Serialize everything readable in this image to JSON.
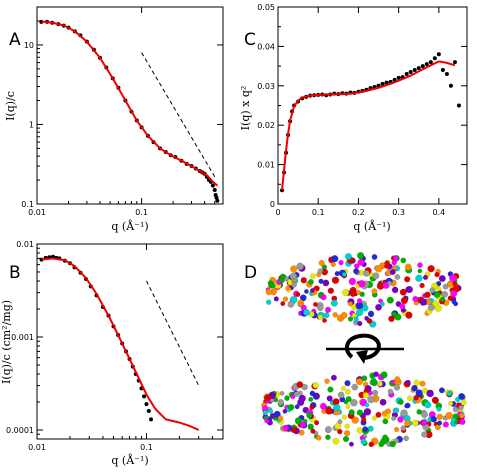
{
  "figure": {
    "panels": {
      "A": {
        "letter": "A"
      },
      "B": {
        "letter": "B"
      },
      "C": {
        "letter": "C"
      },
      "D": {
        "letter": "D"
      }
    }
  },
  "chart_data": [
    {
      "panel": "A",
      "type": "scatter",
      "xlabel": "q (Å⁻¹)",
      "ylabel": "I(q)/c",
      "x_scale": "log",
      "y_scale": "log",
      "xlim": [
        0.01,
        0.6
      ],
      "ylim": [
        0.1,
        30
      ],
      "x_ticks": [
        0.01,
        0.1
      ],
      "x_tick_labels": [
        "0.01",
        "0.1"
      ],
      "y_ticks": [
        0.1,
        1,
        10
      ],
      "y_tick_labels": [
        "0.1",
        "1",
        "10"
      ],
      "grid": false,
      "series": [
        {
          "kind": "points",
          "color": "#000000",
          "x": [
            0.011,
            0.0125,
            0.014,
            0.016,
            0.018,
            0.02,
            0.023,
            0.026,
            0.03,
            0.035,
            0.04,
            0.046,
            0.053,
            0.06,
            0.07,
            0.08,
            0.09,
            0.1,
            0.115,
            0.13,
            0.15,
            0.17,
            0.19,
            0.21,
            0.24,
            0.27,
            0.3,
            0.33,
            0.36,
            0.38,
            0.4,
            0.42,
            0.44,
            0.46,
            0.48,
            0.5,
            0.51,
            0.52,
            0.53
          ],
          "y": [
            19.5,
            19.5,
            19.0,
            18.3,
            17.5,
            16.5,
            14.8,
            13.2,
            11.0,
            8.7,
            6.9,
            5.2,
            3.8,
            2.9,
            2.0,
            1.45,
            1.12,
            0.92,
            0.72,
            0.6,
            0.5,
            0.45,
            0.41,
            0.39,
            0.35,
            0.32,
            0.3,
            0.28,
            0.26,
            0.25,
            0.24,
            0.22,
            0.2,
            0.19,
            0.17,
            0.15,
            0.13,
            0.12,
            0.11
          ]
        },
        {
          "kind": "fit",
          "color": "#ee0000",
          "x": [
            0.011,
            0.014,
            0.018,
            0.023,
            0.03,
            0.04,
            0.053,
            0.07,
            0.09,
            0.115,
            0.15,
            0.19,
            0.24,
            0.3,
            0.36,
            0.42,
            0.48,
            0.53
          ],
          "y": [
            19.7,
            19.1,
            17.6,
            14.9,
            11.0,
            6.9,
            3.8,
            2.0,
            1.12,
            0.72,
            0.5,
            0.41,
            0.35,
            0.3,
            0.26,
            0.23,
            0.19,
            0.17
          ]
        },
        {
          "kind": "dashed-guide",
          "color": "#000000",
          "x": [
            0.1,
            0.5
          ],
          "y": [
            8.0,
            0.22
          ]
        }
      ]
    },
    {
      "panel": "B",
      "type": "scatter",
      "xlabel": "q (Å⁻¹)",
      "ylabel": "I(q)/c (cm²/mg)",
      "x_scale": "log",
      "y_scale": "log",
      "xlim": [
        0.01,
        0.5
      ],
      "ylim": [
        8e-05,
        0.01
      ],
      "x_ticks": [
        0.01,
        0.1
      ],
      "x_tick_labels": [
        "0.01",
        "0.1"
      ],
      "y_ticks": [
        0.0001,
        0.001,
        0.01
      ],
      "y_tick_labels": [
        "0.0001",
        "0.001",
        "0.01"
      ],
      "grid": false,
      "series": [
        {
          "kind": "points",
          "color": "#000000",
          "x": [
            0.011,
            0.012,
            0.013,
            0.014,
            0.015,
            0.016,
            0.018,
            0.02,
            0.022,
            0.025,
            0.028,
            0.031,
            0.035,
            0.04,
            0.045,
            0.05,
            0.055,
            0.06,
            0.065,
            0.07,
            0.075,
            0.08,
            0.085,
            0.09,
            0.095,
            0.1,
            0.105,
            0.11
          ],
          "y": [
            0.0068,
            0.0071,
            0.0072,
            0.0073,
            0.0071,
            0.007,
            0.0066,
            0.0062,
            0.0056,
            0.0049,
            0.0042,
            0.0035,
            0.0028,
            0.0021,
            0.0017,
            0.0013,
            0.00105,
            0.00085,
            0.0007,
            0.00058,
            0.00048,
            0.0004,
            0.00034,
            0.00028,
            0.00023,
            0.00019,
            0.00016,
            0.00013
          ]
        },
        {
          "kind": "fit",
          "color": "#ee0000",
          "x": [
            0.011,
            0.014,
            0.018,
            0.022,
            0.028,
            0.035,
            0.045,
            0.055,
            0.065,
            0.075,
            0.085,
            0.1,
            0.12,
            0.15,
            0.2,
            0.25,
            0.3
          ],
          "y": [
            0.0068,
            0.007,
            0.0067,
            0.0058,
            0.0043,
            0.0029,
            0.0017,
            0.00105,
            0.0007,
            0.00049,
            0.00036,
            0.00024,
            0.00017,
            0.00013,
            0.00012,
            0.00011,
            0.0001
          ]
        },
        {
          "kind": "dashed-guide",
          "color": "#000000",
          "x": [
            0.1,
            0.3
          ],
          "y": [
            0.004,
            0.0003
          ]
        }
      ]
    },
    {
      "panel": "C",
      "type": "scatter",
      "xlabel": "q (Å⁻¹)",
      "ylabel": "I(q) x q²",
      "x_scale": "linear",
      "y_scale": "linear",
      "xlim": [
        0,
        0.47
      ],
      "ylim": [
        0,
        0.05
      ],
      "x_ticks": [
        0,
        0.1,
        0.2,
        0.3,
        0.4
      ],
      "x_tick_labels": [
        "0",
        "0.1",
        "0.2",
        "0.3",
        "0.4"
      ],
      "y_ticks": [
        0,
        0.01,
        0.02,
        0.03,
        0.04,
        0.05
      ],
      "y_tick_labels": [
        "0",
        "0.01",
        "0.02",
        "0.03",
        "0.04",
        "0.05"
      ],
      "grid": false,
      "series": [
        {
          "kind": "points",
          "color": "#000000",
          "x": [
            0.01,
            0.015,
            0.02,
            0.025,
            0.03,
            0.035,
            0.04,
            0.05,
            0.06,
            0.07,
            0.08,
            0.09,
            0.1,
            0.11,
            0.12,
            0.13,
            0.14,
            0.15,
            0.16,
            0.17,
            0.18,
            0.19,
            0.2,
            0.21,
            0.22,
            0.23,
            0.24,
            0.25,
            0.26,
            0.27,
            0.28,
            0.29,
            0.3,
            0.31,
            0.32,
            0.33,
            0.34,
            0.35,
            0.36,
            0.37,
            0.38,
            0.39,
            0.4,
            0.41,
            0.42,
            0.43,
            0.44,
            0.45
          ],
          "y": [
            0.0035,
            0.008,
            0.013,
            0.0175,
            0.021,
            0.0235,
            0.025,
            0.026,
            0.0268,
            0.0272,
            0.0275,
            0.0276,
            0.0277,
            0.0278,
            0.0276,
            0.0278,
            0.028,
            0.0279,
            0.0281,
            0.028,
            0.0283,
            0.0282,
            0.0285,
            0.0287,
            0.029,
            0.0294,
            0.0297,
            0.03,
            0.0305,
            0.0308,
            0.031,
            0.0315,
            0.032,
            0.0322,
            0.033,
            0.0335,
            0.034,
            0.0345,
            0.035,
            0.0355,
            0.036,
            0.037,
            0.038,
            0.034,
            0.033,
            0.03,
            0.036,
            0.025
          ]
        },
        {
          "kind": "fit",
          "color": "#ee0000",
          "x": [
            0.01,
            0.015,
            0.02,
            0.025,
            0.03,
            0.04,
            0.05,
            0.06,
            0.08,
            0.1,
            0.12,
            0.15,
            0.18,
            0.2,
            0.22,
            0.25,
            0.28,
            0.3,
            0.33,
            0.36,
            0.38,
            0.4,
            0.42,
            0.44
          ],
          "y": [
            0.0035,
            0.0085,
            0.0135,
            0.0178,
            0.0212,
            0.0248,
            0.0262,
            0.027,
            0.0275,
            0.0277,
            0.0278,
            0.0279,
            0.028,
            0.0283,
            0.0287,
            0.0295,
            0.0305,
            0.0313,
            0.0326,
            0.0342,
            0.0352,
            0.0362,
            0.0358,
            0.0352
          ]
        }
      ]
    }
  ]
}
